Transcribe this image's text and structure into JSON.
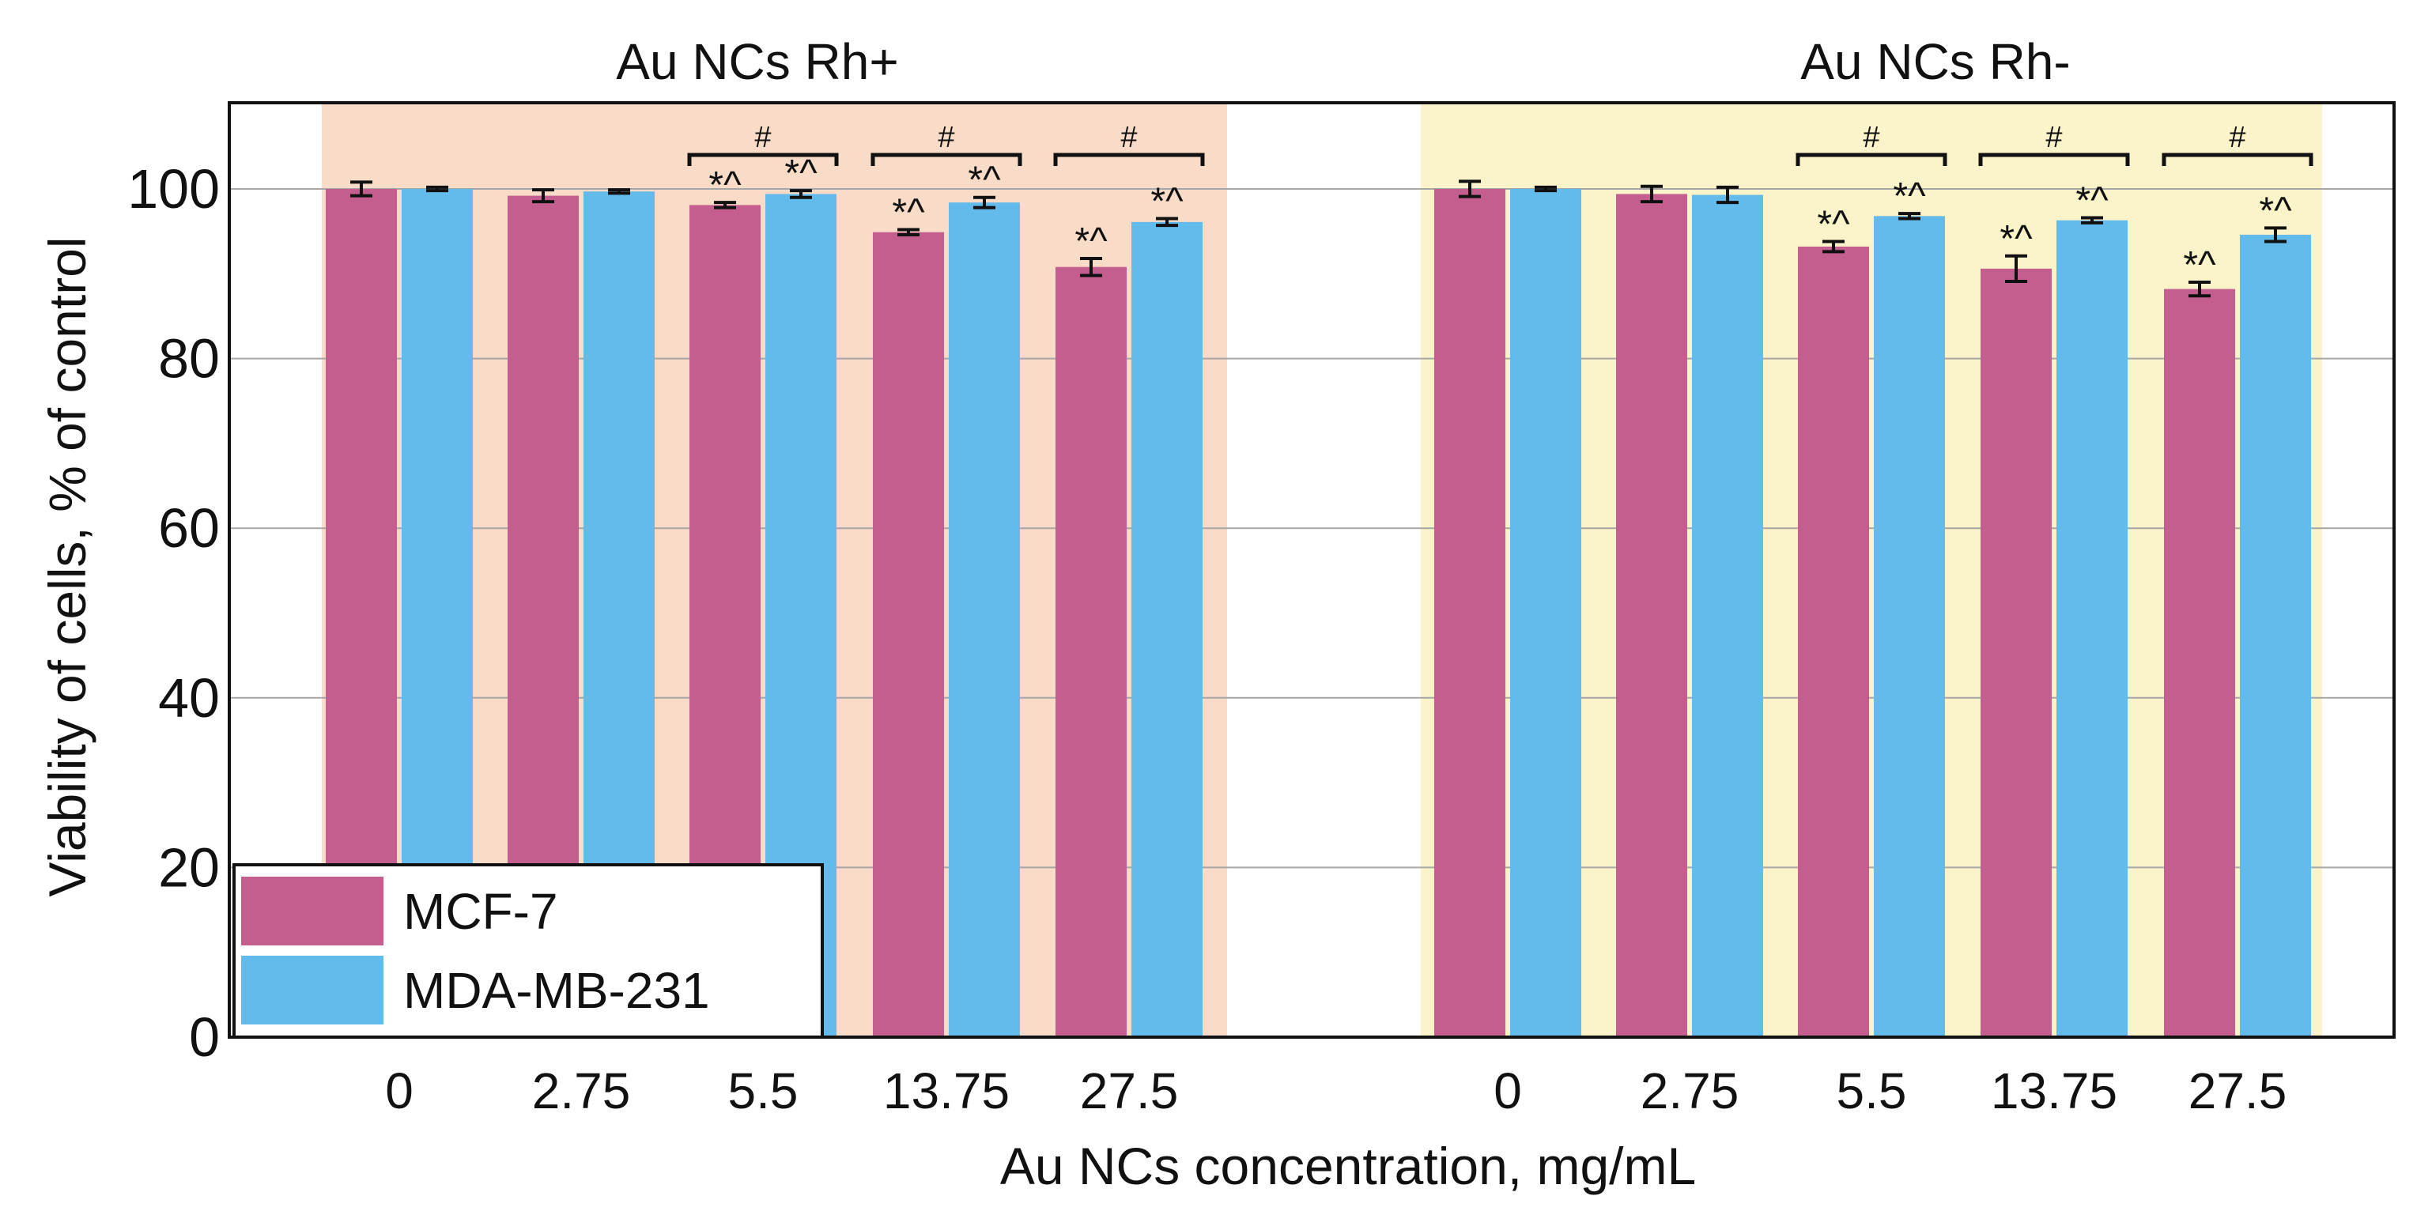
{
  "colors": {
    "mcf7": "#c45e8f",
    "mda": "#63bbec",
    "panel_rh_plus": "#f9dcc8",
    "panel_rh_minus": "#fbf3c9",
    "grid": "#a6a6a6",
    "axis": "#111111"
  },
  "chart_data": {
    "type": "bar",
    "xlabel": "Au NCs concentration, mg/mL",
    "ylabel": "Viability of cells, % of control",
    "ylim": [
      0,
      110
    ],
    "yticks": [
      "0",
      "20",
      "40",
      "60",
      "80",
      "100"
    ],
    "grid": "horizontal",
    "legend": {
      "placement": "bottom-left",
      "entries": [
        "MCF-7",
        "MDA-MB-231"
      ]
    },
    "groups": [
      {
        "title": "Au NCs Rh+",
        "categories": [
          "0",
          "2.75",
          "5.5",
          "13.75",
          "27.5"
        ],
        "series": [
          {
            "name": "MCF-7",
            "values": [
              100,
              99.2,
              98.1,
              94.9,
              90.8
            ],
            "errors": [
              0.8,
              0.7,
              0.3,
              0.3,
              1.0
            ],
            "annotations": [
              "",
              "",
              "*^",
              "*^",
              "*^"
            ]
          },
          {
            "name": "MDA-MB-231",
            "values": [
              100,
              99.7,
              99.4,
              98.4,
              96.1
            ],
            "errors": [
              0.2,
              0.2,
              0.4,
              0.6,
              0.4
            ],
            "annotations": [
              "",
              "",
              "*^",
              "*^",
              "*^"
            ]
          }
        ],
        "brackets": [
          {
            "category": "5.5",
            "label": "#"
          },
          {
            "category": "13.75",
            "label": "#"
          },
          {
            "category": "27.5",
            "label": "#"
          }
        ]
      },
      {
        "title": "Au NCs Rh-",
        "categories": [
          "0",
          "2.75",
          "5.5",
          "13.75",
          "27.5"
        ],
        "series": [
          {
            "name": "MCF-7",
            "values": [
              100,
              99.4,
              93.2,
              90.6,
              88.2
            ],
            "errors": [
              0.9,
              0.9,
              0.6,
              1.5,
              0.8
            ],
            "annotations": [
              "",
              "",
              "*^",
              "*^",
              "*^"
            ]
          },
          {
            "name": "MDA-MB-231",
            "values": [
              100,
              99.3,
              96.8,
              96.3,
              94.6
            ],
            "errors": [
              0.2,
              0.9,
              0.3,
              0.3,
              0.8
            ],
            "annotations": [
              "",
              "",
              "*^",
              "*^",
              "*^"
            ]
          }
        ],
        "brackets": [
          {
            "category": "5.5",
            "label": "#"
          },
          {
            "category": "13.75",
            "label": "#"
          },
          {
            "category": "27.5",
            "label": "#"
          }
        ]
      }
    ]
  }
}
